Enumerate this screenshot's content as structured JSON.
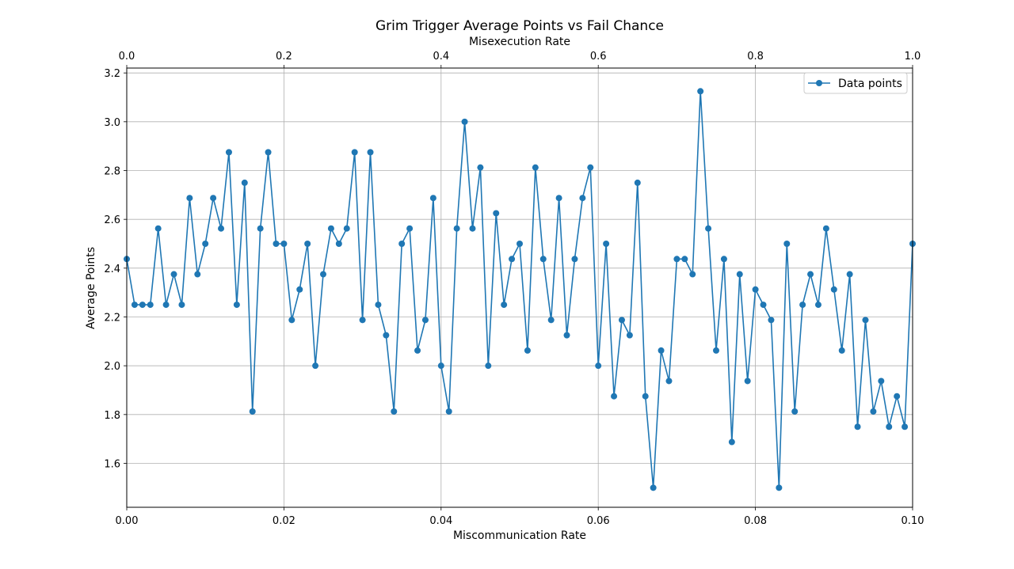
{
  "chart_data": {
    "type": "line",
    "title": "Grim Trigger Average Points vs Fail Chance",
    "xlabel": "Miscommunication Rate",
    "ylabel": "Average Points",
    "x2label": "Misexecution Rate",
    "xlim": [
      0.0,
      0.1
    ],
    "ylim": [
      1.42,
      3.22
    ],
    "x2lim": [
      0.0,
      1.0
    ],
    "x_ticks": [
      "0.00",
      "0.02",
      "0.04",
      "0.06",
      "0.08",
      "0.10"
    ],
    "x2_ticks": [
      "0.0",
      "0.2",
      "0.4",
      "0.6",
      "0.8",
      "1.0"
    ],
    "y_ticks": [
      "1.6",
      "1.8",
      "2.0",
      "2.2",
      "2.4",
      "2.6",
      "2.8",
      "3.0",
      "3.2"
    ],
    "grid": true,
    "legend_position": "top-right",
    "series": [
      {
        "name": "Data points",
        "color": "#1f77b4",
        "marker": "circle",
        "x": [
          0.0,
          0.001,
          0.002,
          0.003,
          0.004,
          0.005,
          0.006,
          0.007,
          0.008,
          0.009,
          0.01,
          0.011,
          0.012,
          0.013,
          0.014,
          0.015,
          0.016,
          0.017,
          0.018,
          0.019,
          0.02,
          0.021,
          0.022,
          0.023,
          0.024,
          0.025,
          0.026,
          0.027,
          0.028,
          0.029,
          0.03,
          0.031,
          0.032,
          0.033,
          0.034,
          0.035,
          0.036,
          0.037,
          0.038,
          0.039,
          0.04,
          0.041,
          0.042,
          0.043,
          0.044,
          0.045,
          0.046,
          0.047,
          0.048,
          0.049,
          0.05,
          0.051,
          0.052,
          0.053,
          0.054,
          0.055,
          0.056,
          0.057,
          0.058,
          0.059,
          0.06,
          0.061,
          0.062,
          0.063,
          0.064,
          0.065,
          0.066,
          0.067,
          0.068,
          0.069,
          0.07,
          0.071,
          0.072,
          0.073,
          0.074,
          0.075,
          0.076,
          0.077,
          0.078,
          0.079,
          0.08,
          0.081,
          0.082,
          0.083,
          0.084,
          0.085,
          0.086,
          0.087,
          0.088,
          0.089,
          0.09,
          0.091,
          0.092,
          0.093,
          0.094,
          0.095,
          0.096,
          0.097,
          0.098,
          0.099,
          0.1
        ],
        "y": [
          2.4375,
          2.25,
          2.25,
          2.25,
          2.5625,
          2.25,
          2.375,
          2.25,
          2.6875,
          2.375,
          2.5,
          2.6875,
          2.5625,
          2.875,
          2.25,
          2.75,
          1.8125,
          2.5625,
          2.875,
          2.5,
          2.5,
          2.1875,
          2.3125,
          2.5,
          2.0,
          2.375,
          2.5625,
          2.5,
          2.5625,
          2.875,
          2.1875,
          2.875,
          2.25,
          2.125,
          1.8125,
          2.5,
          2.5625,
          2.0625,
          2.1875,
          2.6875,
          2.0,
          1.8125,
          2.5625,
          3.0,
          2.5625,
          2.8125,
          2.0,
          2.625,
          2.25,
          2.4375,
          2.5,
          2.0625,
          2.8125,
          2.4375,
          2.1875,
          2.6875,
          2.125,
          2.4375,
          2.6875,
          2.8125,
          2.0,
          2.5,
          1.875,
          2.1875,
          2.125,
          2.75,
          1.875,
          1.5,
          2.0625,
          1.9375,
          2.4375,
          2.4375,
          2.375,
          3.125,
          2.5625,
          2.0625,
          2.4375,
          1.6875,
          2.375,
          1.9375,
          2.3125,
          2.25,
          2.1875,
          1.5,
          2.5,
          1.8125,
          2.25,
          2.375,
          2.25,
          2.5625,
          2.3125,
          2.0625,
          2.375,
          1.75,
          2.1875,
          1.8125,
          1.9375,
          1.75,
          1.875,
          1.75,
          2.5
        ]
      }
    ]
  }
}
